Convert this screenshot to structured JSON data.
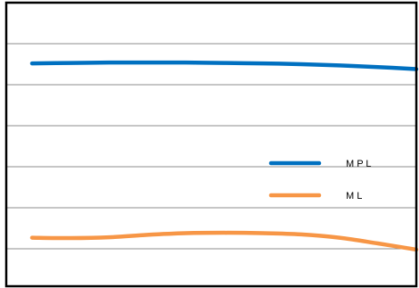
{
  "chart_data": {
    "type": "line",
    "x": [
      0,
      1,
      2,
      3,
      4,
      5,
      6,
      7,
      8,
      9,
      10
    ],
    "series": [
      {
        "name": "M P L",
        "color": "#0070C0",
        "values": [
          5.52,
          5.53,
          5.54,
          5.54,
          5.54,
          5.53,
          5.52,
          5.5,
          5.47,
          5.43,
          5.38
        ]
      },
      {
        "name": "M L",
        "color": "#F79646",
        "values": [
          1.27,
          1.26,
          1.28,
          1.34,
          1.38,
          1.39,
          1.38,
          1.35,
          1.27,
          1.13,
          0.98
        ]
      }
    ],
    "ylim": [
      0,
      7
    ],
    "xlim": [
      0,
      10
    ],
    "grid": true,
    "legend_position": "right",
    "title": "",
    "xlabel": "",
    "ylabel": ""
  }
}
